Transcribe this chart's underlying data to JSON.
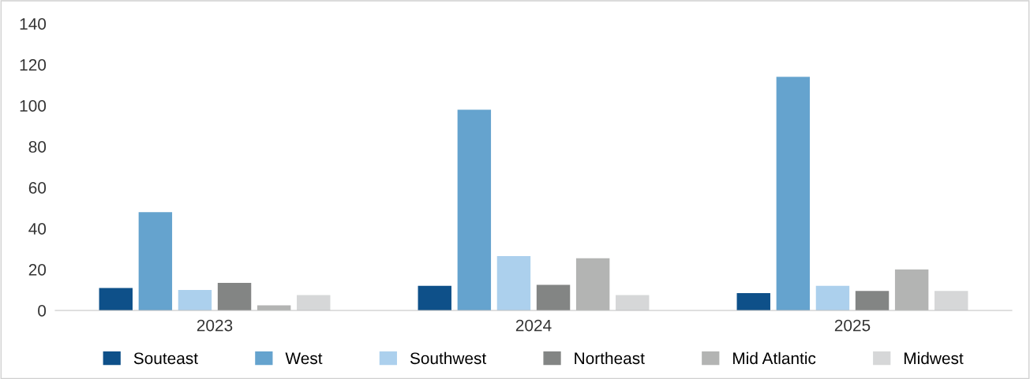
{
  "chart_data": {
    "type": "bar",
    "categories": [
      "2023",
      "2024",
      "2025"
    ],
    "series": [
      {
        "name": "Souteast",
        "color": "#0e5089",
        "values": [
          11,
          12,
          8.5
        ]
      },
      {
        "name": "West",
        "color": "#65a3ce",
        "values": [
          48,
          98,
          114
        ]
      },
      {
        "name": "Southwest",
        "color": "#acd0ed",
        "values": [
          10,
          26.5,
          12
        ]
      },
      {
        "name": "Northeast",
        "color": "#838584",
        "values": [
          13.5,
          12.5,
          9.5
        ]
      },
      {
        "name": "Mid Atlantic",
        "color": "#b3b4b3",
        "values": [
          2.5,
          25.5,
          20
        ]
      },
      {
        "name": "Midwest",
        "color": "#d6d7d8",
        "values": [
          7.5,
          7.5,
          9.5
        ]
      }
    ],
    "ylim": [
      0,
      140
    ],
    "yticks": [
      0,
      20,
      40,
      60,
      80,
      100,
      120,
      140
    ],
    "grid": false,
    "legend": "bottom"
  }
}
